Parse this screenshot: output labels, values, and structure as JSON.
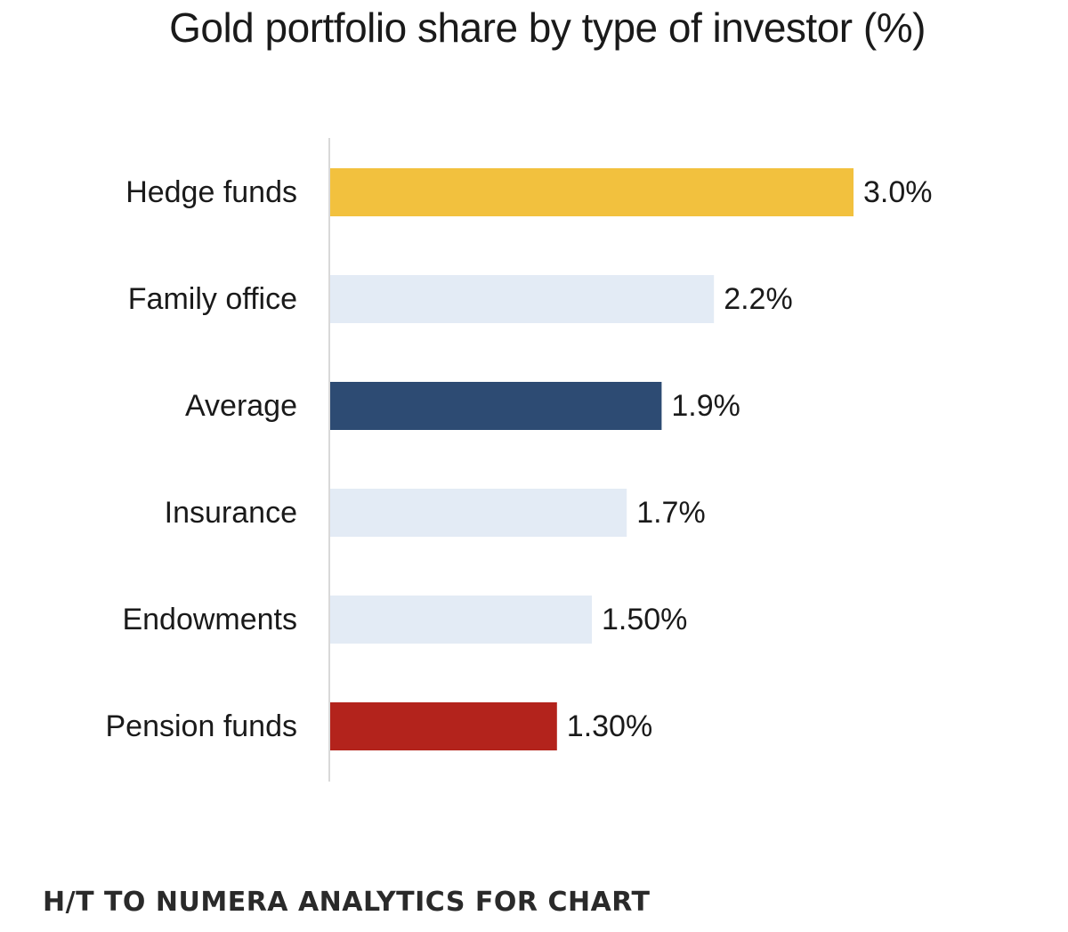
{
  "chart_data": {
    "type": "bar",
    "orientation": "horizontal",
    "title": "Gold portfolio share by type of investor (%)",
    "xlabel": "",
    "ylabel": "",
    "categories": [
      "Hedge funds",
      "Family office",
      "Average",
      "Insurance",
      "Endowments",
      "Pension funds"
    ],
    "values": [
      3.0,
      2.2,
      1.9,
      1.7,
      1.5,
      1.3
    ],
    "data_labels": [
      "3.0%",
      "2.2%",
      "1.9%",
      "1.7%",
      "1.50%",
      "1.30%"
    ],
    "colors": [
      "#f2c13e",
      "#e3ebf5",
      "#2d4b73",
      "#e3ebf5",
      "#e3ebf5",
      "#b3231c"
    ],
    "label_color": "#1a1a1a",
    "axis_color": "#d9d9d9",
    "xlim": [
      0,
      3.0
    ],
    "grid": false,
    "legend": "none"
  },
  "footer": {
    "credit": "H/T TO NUMERA ANALYTICS FOR CHART"
  }
}
